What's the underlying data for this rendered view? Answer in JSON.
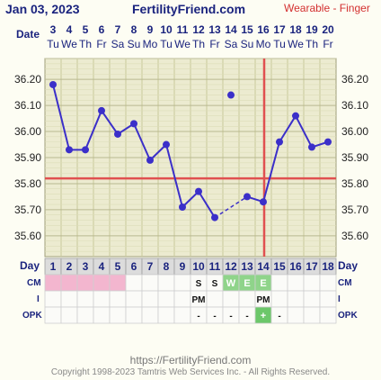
{
  "header": {
    "date": "Jan 03, 2023",
    "site": "FertilityFriend.com",
    "note": "Wearable - Finger"
  },
  "row_labels": {
    "date": "Date",
    "day": "Day",
    "cm": "CM",
    "i": "I",
    "opk": "OPK"
  },
  "chart_data": {
    "type": "line",
    "dates": [
      "3",
      "4",
      "5",
      "6",
      "7",
      "8",
      "9",
      "10",
      "11",
      "12",
      "13",
      "14",
      "15",
      "16",
      "17",
      "18",
      "19",
      "20"
    ],
    "weekdays": [
      "Tu",
      "We",
      "Th",
      "Fr",
      "Sa",
      "Su",
      "Mo",
      "Tu",
      "We",
      "Th",
      "Fr",
      "Sa",
      "Su",
      "Mo",
      "Tu",
      "We",
      "Th",
      "Fr"
    ],
    "cycle_days": [
      "1",
      "2",
      "3",
      "4",
      "5",
      "6",
      "7",
      "8",
      "9",
      "10",
      "11",
      "12",
      "13",
      "14",
      "15",
      "16",
      "17",
      "18"
    ],
    "y_ticks": [
      "35.60",
      "35.70",
      "35.80",
      "35.90",
      "36.00",
      "36.10",
      "36.20"
    ],
    "ylim": [
      35.52,
      36.28
    ],
    "temperatures": [
      36.18,
      35.93,
      35.93,
      36.08,
      35.99,
      36.03,
      35.89,
      35.95,
      35.71,
      35.77,
      35.67,
      36.14,
      35.75,
      35.73,
      35.96,
      36.06,
      35.94,
      35.96
    ],
    "discarded_day_index": 11,
    "dashed_from_index": 10,
    "dashed_to_index": 12,
    "coverline": 35.82,
    "ovulation_day_index": 13,
    "cm": [
      "",
      "",
      "",
      "",
      "",
      "",
      "",
      "",
      "",
      "S",
      "S",
      "W",
      "E",
      "E",
      "",
      "",
      "",
      ""
    ],
    "intercourse": [
      "",
      "",
      "",
      "",
      "",
      "",
      "",
      "",
      "",
      "PM",
      "",
      "",
      "",
      "PM",
      "",
      "",
      "",
      ""
    ],
    "opk": [
      "",
      "",
      "",
      "",
      "",
      "",
      "",
      "",
      "",
      "-",
      "-",
      "-",
      "-",
      "+",
      "-",
      "",
      "",
      ""
    ],
    "menstruation_days": [
      0,
      1,
      2,
      3,
      4
    ],
    "colors": {
      "line": "#3b2fc9",
      "coverline": "#e05050",
      "grid": "#c8c89a",
      "menses": "#f3b6cf",
      "fertile": "#8fd48a",
      "opk_positive": "#6cc76a"
    }
  },
  "footer": {
    "url": "https://FertilityFriend.com",
    "copyright": "Copyright 1998-2023 Tamtris Web Services Inc. - All Rights Reserved."
  }
}
